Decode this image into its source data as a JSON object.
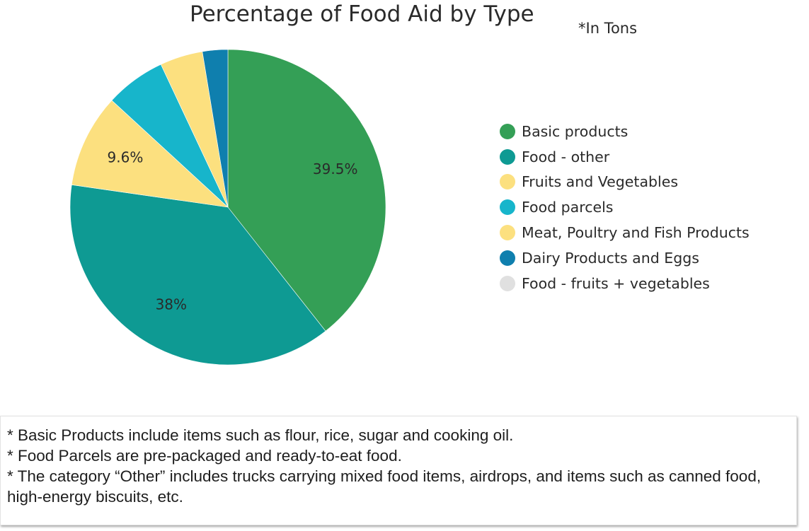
{
  "chart_data": {
    "type": "pie",
    "title": "Percentage of Food Aid by Type",
    "subtitle": "*In Tons",
    "legend_position": "right",
    "slices": [
      {
        "label": "Basic products",
        "value": 39.5,
        "color": "#349f56",
        "data_label": "39.5%"
      },
      {
        "label": "Food - other",
        "value": 38.0,
        "color": "#0e9a93",
        "data_label": "38%"
      },
      {
        "label": "Fruits and Vegetables",
        "value": 9.6,
        "color": "#fce07f",
        "data_label": "9.6%"
      },
      {
        "label": "Food parcels",
        "value": 6.2,
        "color": "#17b5cb",
        "data_label": ""
      },
      {
        "label": "Meat, Poultry and Fish Products",
        "value": 4.4,
        "color": "#fce07f",
        "data_label": ""
      },
      {
        "label": "Dairy Products and Eggs",
        "value": 2.6,
        "color": "#0f7fae",
        "data_label": ""
      },
      {
        "label": "Food - fruits + vegetables",
        "value": 0.0,
        "color": "#e0e0e0",
        "data_label": ""
      }
    ]
  },
  "notes": [
    "* Basic Products include items such as flour, rice, sugar and cooking oil.",
    "* Food Parcels are pre-packaged and ready-to-eat food.",
    "* The category “Other” includes trucks carrying mixed food items, airdrops, and items such as canned food, high-energy biscuits, etc."
  ]
}
